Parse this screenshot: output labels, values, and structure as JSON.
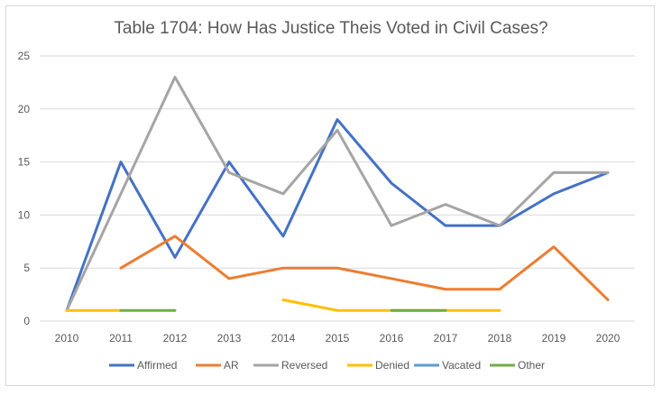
{
  "chart_data": {
    "type": "line",
    "title": "Table 1704: How Has Justice Theis Voted in Civil Cases?",
    "xlabel": "",
    "ylabel": "",
    "categories": [
      "2010",
      "2011",
      "2012",
      "2013",
      "2014",
      "2015",
      "2016",
      "2017",
      "2018",
      "2019",
      "2020"
    ],
    "ylim": [
      0,
      25
    ],
    "yticks": [
      "0",
      "5",
      "10",
      "15",
      "20",
      "25"
    ],
    "grid": true,
    "legend_position": "bottom",
    "series": [
      {
        "name": "Affirmed",
        "color": "#4472C4",
        "values": [
          1,
          15,
          6,
          15,
          8,
          19,
          13,
          9,
          9,
          12,
          14
        ]
      },
      {
        "name": "AR",
        "color": "#ED7D31",
        "values": [
          null,
          5,
          8,
          4,
          5,
          5,
          4,
          3,
          3,
          7,
          2
        ]
      },
      {
        "name": "Reversed",
        "color": "#A5A5A5",
        "values": [
          1,
          12,
          23,
          14,
          12,
          18,
          9,
          11,
          9,
          14,
          14
        ]
      },
      {
        "name": "Denied",
        "color": "#FFC000",
        "values": [
          1,
          1,
          null,
          null,
          2,
          1,
          1,
          1,
          1,
          null,
          null
        ]
      },
      {
        "name": "Vacated",
        "color": "#5B9BD5",
        "values": [
          null,
          null,
          null,
          null,
          null,
          null,
          null,
          null,
          null,
          null,
          null
        ]
      },
      {
        "name": "Other",
        "color": "#70AD47",
        "values": [
          null,
          1,
          1,
          null,
          null,
          null,
          1,
          1,
          null,
          null,
          null
        ]
      }
    ]
  }
}
